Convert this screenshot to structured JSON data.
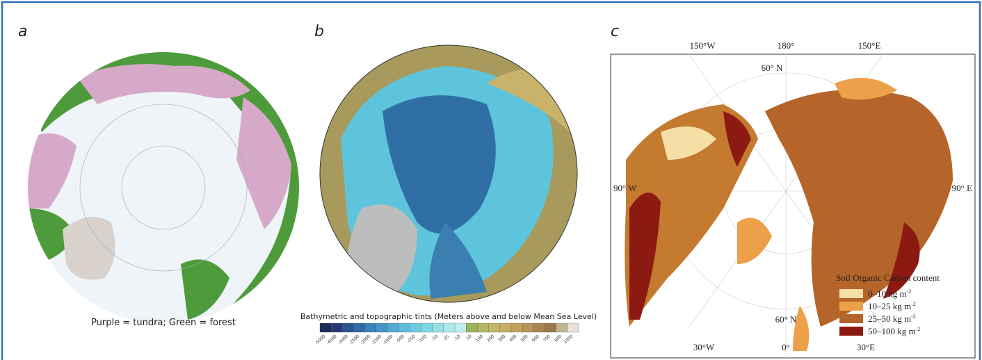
{
  "panels": [
    {
      "label": "a",
      "caption": "Purple = tundra; Green = forest"
    },
    {
      "label": "b",
      "colorbar": {
        "title": "Bathymetric and topographic tints (Meters above and below Mean Sea Level)",
        "ticks": [
          "-5000",
          "-4000",
          "-3000",
          "-2500",
          "-2000",
          "-1500",
          "-1000",
          "-500",
          "-250",
          "-100",
          "-50",
          "-25",
          "-10",
          "50",
          "100",
          "200",
          "300",
          "400",
          "500",
          "600",
          "700",
          "800",
          "1000"
        ]
      }
    },
    {
      "label": "c",
      "top_labels": [
        "150°W",
        "180°",
        "150°E"
      ],
      "bottom_labels": [
        "30°W",
        "0°",
        "30°E"
      ],
      "lat_top": "60° N",
      "lat_bottom": "60° N",
      "left_label": "90° W",
      "right_label": "90° E",
      "legend": {
        "title": "Soil Organic Carbon content",
        "entries": [
          {
            "label": "0–10 kg m",
            "sup": "-2"
          },
          {
            "label": "10–25 kg m",
            "sup": "-2"
          },
          {
            "label": "25–50 kg m",
            "sup": "-2"
          },
          {
            "label": "50–100 kg m",
            "sup": "-2"
          }
        ]
      }
    }
  ]
}
